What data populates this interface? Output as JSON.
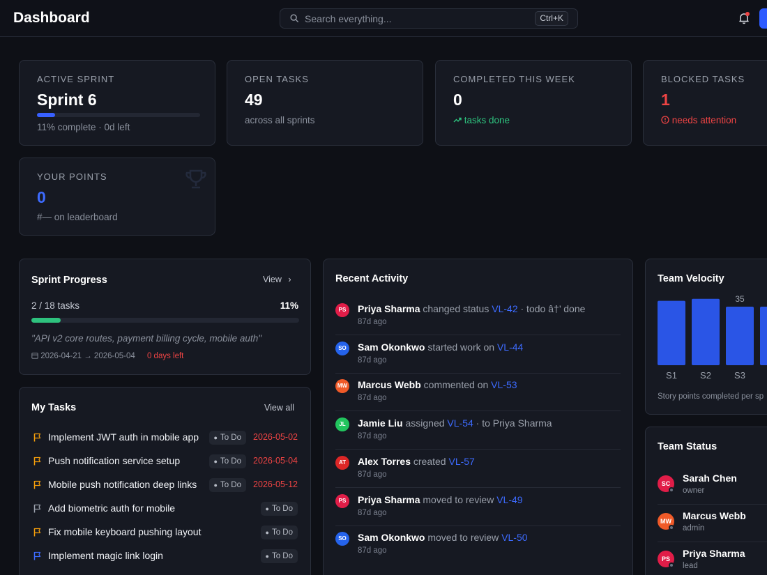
{
  "header": {
    "title": "Dashboard",
    "search_placeholder": "Search everything...",
    "search_shortcut": "Ctrl+K"
  },
  "stats": {
    "active_sprint": {
      "label": "ACTIVE SPRINT",
      "value": "Sprint 6",
      "progress": 0.11,
      "sub": "11% complete · 0d left"
    },
    "open_tasks": {
      "label": "OPEN TASKS",
      "value": "49",
      "sub": "across all sprints"
    },
    "completed": {
      "label": "COMPLETED THIS WEEK",
      "value": "0",
      "sub": "tasks done"
    },
    "blocked": {
      "label": "BLOCKED TASKS",
      "value": "1",
      "sub": "needs attention"
    },
    "points": {
      "label": "YOUR POINTS",
      "value": "0",
      "sub": "#— on leaderboard"
    }
  },
  "sprint_progress": {
    "title": "Sprint Progress",
    "view_label": "View",
    "tasks_text": "2 / 18 tasks",
    "percent_text": "11%",
    "progress": 0.11,
    "goal": "\"API v2 core routes, payment billing cycle, mobile auth\"",
    "dates": "2026-04-21 → 2026-05-04",
    "days_left": "0 days left"
  },
  "my_tasks": {
    "title": "My Tasks",
    "view_all_label": "View all",
    "items": [
      {
        "title": "Implement JWT auth in mobile app",
        "status": "To Do",
        "due": "2026-05-02",
        "flag": "#f59e0b"
      },
      {
        "title": "Push notification service setup",
        "status": "To Do",
        "due": "2026-05-04",
        "flag": "#f59e0b"
      },
      {
        "title": "Mobile push notification deep links",
        "status": "To Do",
        "due": "2026-05-12",
        "flag": "#f59e0b"
      },
      {
        "title": "Add biometric auth for mobile",
        "status": "To Do",
        "due": "",
        "flag": "#9aa0ab"
      },
      {
        "title": "Fix mobile keyboard pushing layout",
        "status": "To Do",
        "due": "",
        "flag": "#f59e0b"
      },
      {
        "title": "Implement magic link login",
        "status": "To Do",
        "due": "",
        "flag": "#3d6bff"
      }
    ]
  },
  "activity": {
    "title": "Recent Activity",
    "items": [
      {
        "initials": "PS",
        "color": "#e11d48",
        "user": "Priya Sharma",
        "action": "changed status",
        "link": "VL-42",
        "tail": "· todo â†’ done",
        "time": "87d ago"
      },
      {
        "initials": "SO",
        "color": "#2563eb",
        "user": "Sam Okonkwo",
        "action": "started work on",
        "link": "VL-44",
        "tail": "",
        "time": "87d ago"
      },
      {
        "initials": "MW",
        "color": "#f05a28",
        "user": "Marcus Webb",
        "action": "commented on",
        "link": "VL-53",
        "tail": "",
        "time": "87d ago"
      },
      {
        "initials": "JL",
        "color": "#22c55e",
        "user": "Jamie Liu",
        "action": "assigned",
        "link": "VL-54",
        "tail": "· to Priya Sharma",
        "time": "87d ago"
      },
      {
        "initials": "AT",
        "color": "#dc2626",
        "user": "Alex Torres",
        "action": "created",
        "link": "VL-57",
        "tail": "",
        "time": "87d ago"
      },
      {
        "initials": "PS",
        "color": "#e11d48",
        "user": "Priya Sharma",
        "action": "moved to review",
        "link": "VL-49",
        "tail": "",
        "time": "87d ago"
      },
      {
        "initials": "SO",
        "color": "#2563eb",
        "user": "Sam Okonkwo",
        "action": "moved to review",
        "link": "VL-50",
        "tail": "",
        "time": "87d ago"
      }
    ]
  },
  "velocity": {
    "title": "Team Velocity",
    "caption": "Story points completed per sp",
    "visible_value_label": "35"
  },
  "chart_data": {
    "type": "bar",
    "categories": [
      "S1",
      "S2",
      "S3",
      ""
    ],
    "values": [
      33,
      34,
      30,
      30
    ],
    "title": "Team Velocity",
    "ylabel": "",
    "ylim": [
      0,
      40
    ]
  },
  "team_status": {
    "title": "Team Status",
    "members": [
      {
        "initials": "SC",
        "color": "#e11d48",
        "name": "Sarah Chen",
        "role": "owner"
      },
      {
        "initials": "MW",
        "color": "#f05a28",
        "name": "Marcus Webb",
        "role": "admin"
      },
      {
        "initials": "PS",
        "color": "#e11d48",
        "name": "Priya Sharma",
        "role": "lead"
      }
    ]
  }
}
